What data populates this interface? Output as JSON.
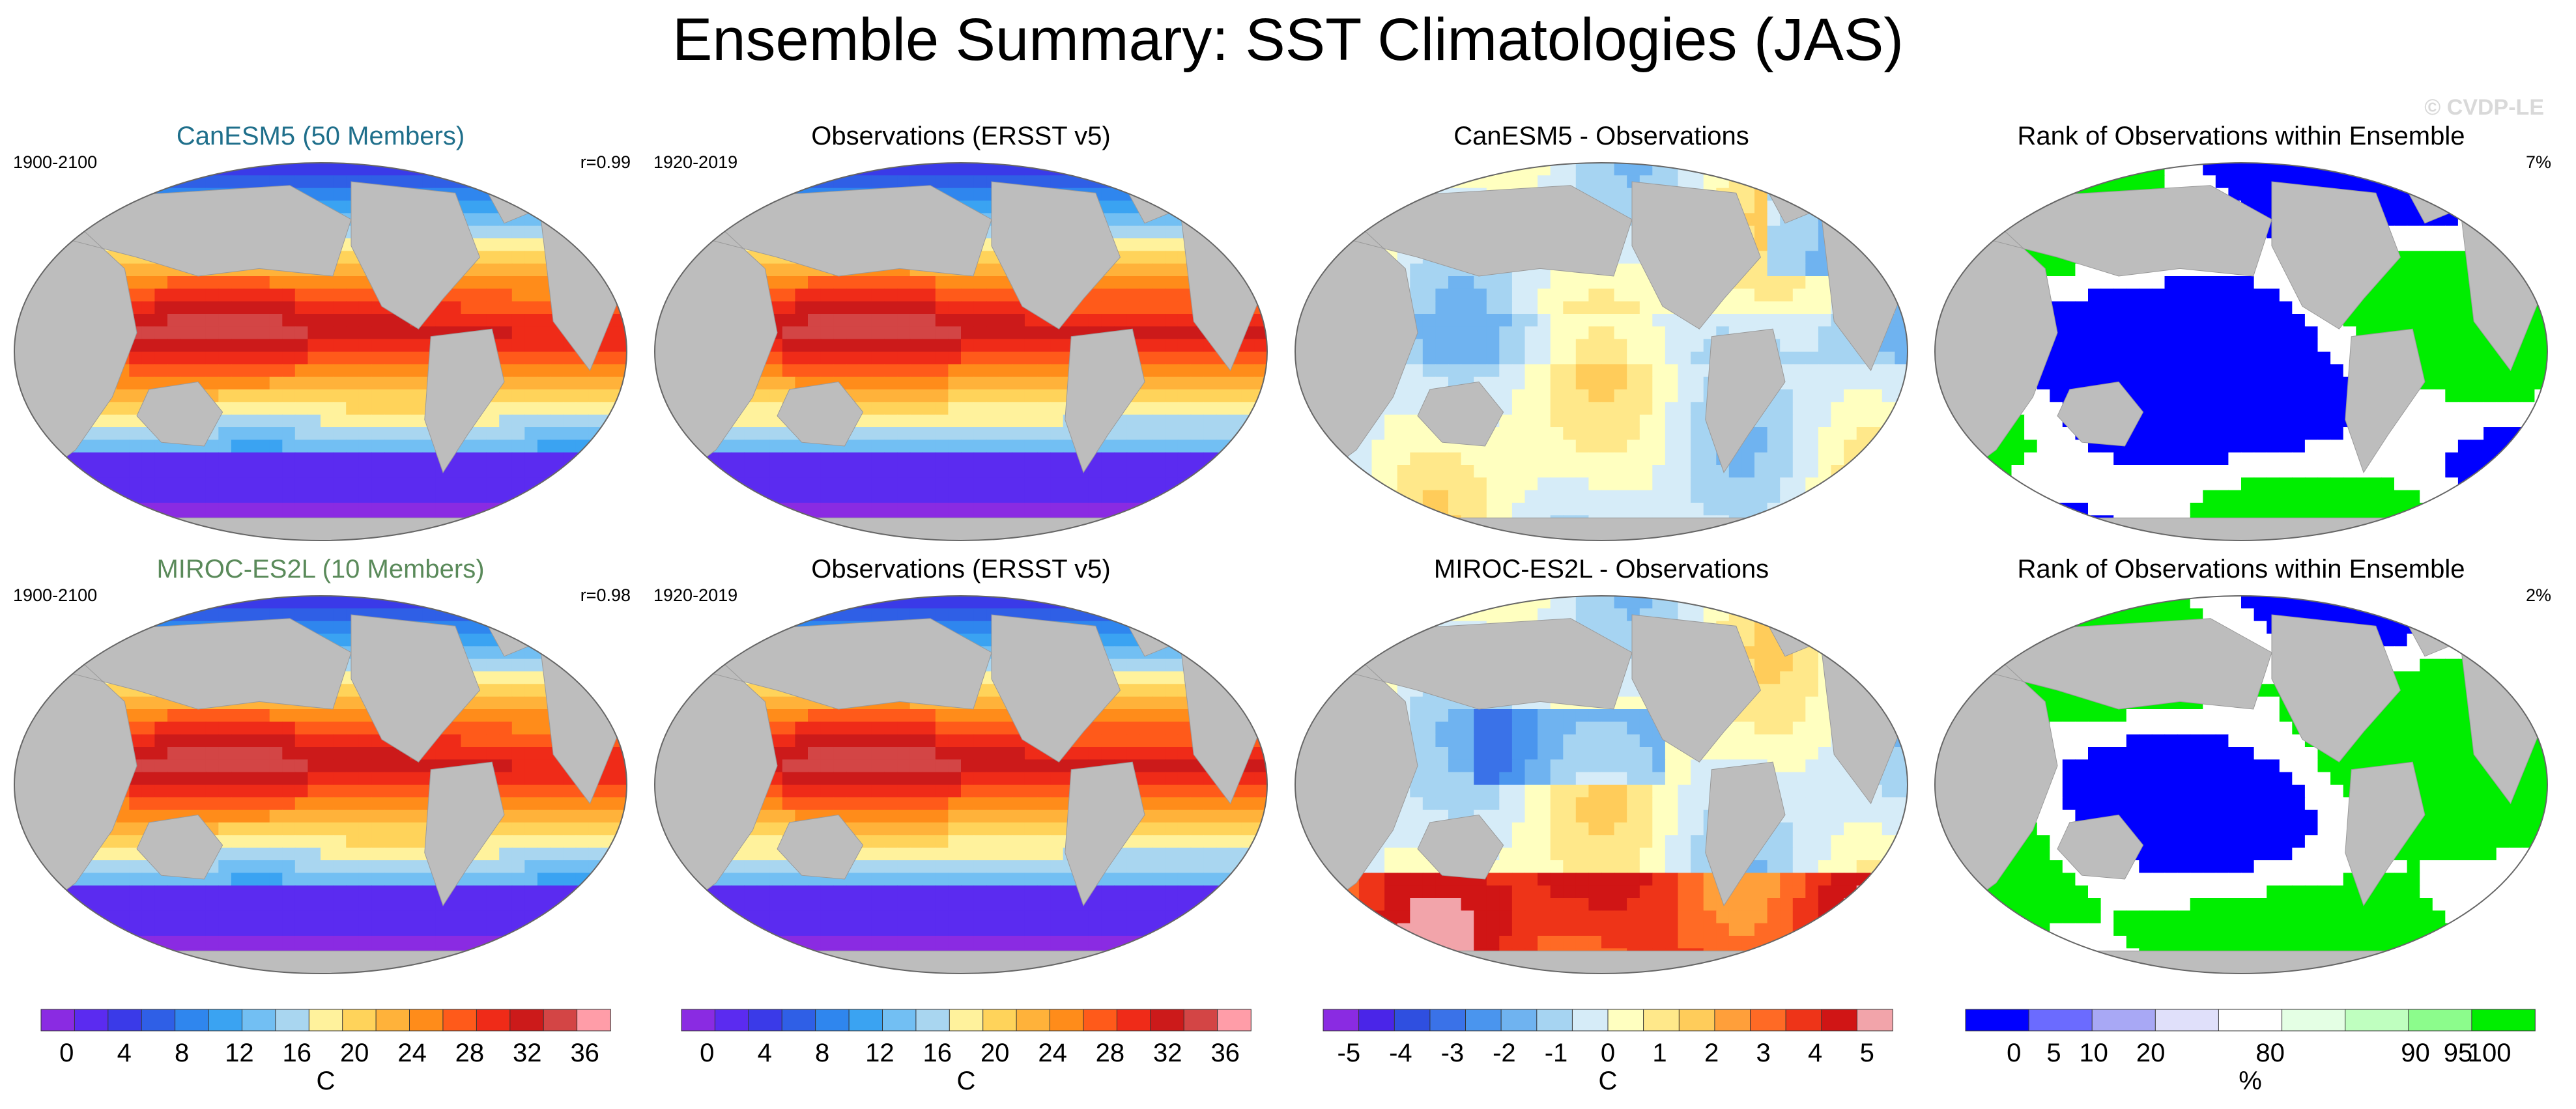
{
  "figure": {
    "title": "Ensemble Summary: SST Climatologies (JAS)",
    "watermark": "© CVDP-LE"
  },
  "colors": {
    "land": "#bdbdbd",
    "sst_palette": [
      "#8a2be2",
      "#5b2bf0",
      "#3a3ae8",
      "#2f5fe6",
      "#2f86ee",
      "#3aa3f2",
      "#72bff3",
      "#a9d6f0",
      "#fff29c",
      "#ffd35a",
      "#ffb23a",
      "#ff8c1a",
      "#ff5a1a",
      "#ef2b18",
      "#cc1a1a",
      "#d34545",
      "#ff9da8"
    ],
    "diff_palette": [
      "#8a2be2",
      "#4a25e8",
      "#2f4fe0",
      "#3a72e8",
      "#4a95ee",
      "#6fb3f0",
      "#a6d4f2",
      "#d6ecf8",
      "#ffffc0",
      "#ffe88a",
      "#ffcc5a",
      "#ff9f3a",
      "#ff6a25",
      "#ee3418",
      "#d01515",
      "#f2a4aa"
    ],
    "rank_palette": [
      "#0000ff",
      "#6b6bff",
      "#a8a8f5",
      "#e0e0fa",
      "#ffffff",
      "#e4ffe4",
      "#bfffbf",
      "#8cfc8c",
      "#00ee00"
    ],
    "model1_title": "#1f6f8b",
    "model2_title": "#5a8a5a"
  },
  "chart_data": [
    {
      "type": "heatmap",
      "panel": "row1-col1",
      "title": "CanESM5 (50 Members)",
      "left_label": "1900-2100",
      "right_label": "r=0.99",
      "variable": "SST climatology",
      "units": "C",
      "field": "model"
    },
    {
      "type": "heatmap",
      "panel": "row1-col2",
      "title": "Observations (ERSST v5)",
      "left_label": "1920-2019",
      "right_label": "",
      "variable": "SST climatology",
      "units": "C",
      "field": "obs"
    },
    {
      "type": "heatmap",
      "panel": "row1-col3",
      "title": "CanESM5 - Observations",
      "left_label": "",
      "right_label": "",
      "variable": "SST difference",
      "units": "C",
      "field": "diff1"
    },
    {
      "type": "heatmap",
      "panel": "row1-col4",
      "title": "Rank of Observations within Ensemble",
      "left_label": "",
      "right_label": "7%",
      "variable": "rank",
      "units": "%",
      "field": "rank1"
    },
    {
      "type": "heatmap",
      "panel": "row2-col1",
      "title": "MIROC-ES2L (10 Members)",
      "left_label": "1900-2100",
      "right_label": "r=0.98",
      "variable": "SST climatology",
      "units": "C",
      "field": "model"
    },
    {
      "type": "heatmap",
      "panel": "row2-col2",
      "title": "Observations (ERSST v5)",
      "left_label": "1920-2019",
      "right_label": "",
      "variable": "SST climatology",
      "units": "C",
      "field": "obs"
    },
    {
      "type": "heatmap",
      "panel": "row2-col3",
      "title": "MIROC-ES2L - Observations",
      "left_label": "",
      "right_label": "",
      "variable": "SST difference",
      "units": "C",
      "field": "diff2"
    },
    {
      "type": "heatmap",
      "panel": "row2-col4",
      "title": "Rank of Observations within Ensemble",
      "left_label": "",
      "right_label": "2%",
      "variable": "rank",
      "units": "%",
      "field": "rank2"
    }
  ],
  "colorbars": [
    {
      "label": "C",
      "ticks": [
        "0",
        "4",
        "8",
        "12",
        "16",
        "20",
        "24",
        "28",
        "32",
        "36"
      ],
      "palette": "sst_palette"
    },
    {
      "label": "C",
      "ticks": [
        "0",
        "4",
        "8",
        "12",
        "16",
        "20",
        "24",
        "28",
        "32",
        "36"
      ],
      "palette": "sst_palette"
    },
    {
      "label": "C",
      "ticks": [
        "-5",
        "-4",
        "-3",
        "-2",
        "-1",
        "0",
        "1",
        "2",
        "3",
        "4",
        "5"
      ],
      "palette": "diff_palette"
    },
    {
      "label": "%",
      "ticks": [
        "0",
        "5",
        "10",
        "20",
        "80",
        "90",
        "95",
        "100"
      ],
      "palette": "rank_palette"
    }
  ]
}
